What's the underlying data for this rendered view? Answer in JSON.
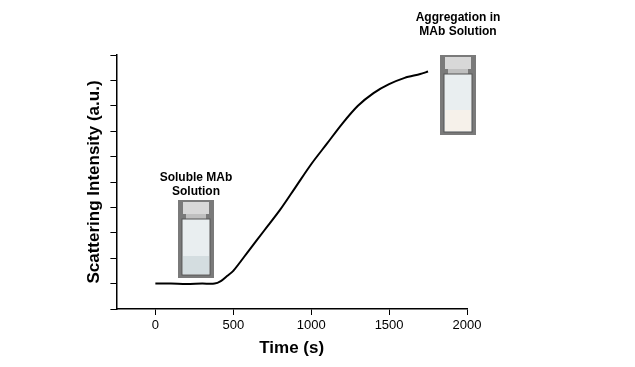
{
  "chart_data": {
    "type": "line",
    "x_label": "Time (s)",
    "y_label": "Scattering Intensity (a.u.)",
    "x": [
      0,
      100,
      200,
      300,
      380,
      420,
      460,
      500,
      600,
      700,
      800,
      900,
      1000,
      1100,
      1200,
      1300,
      1400,
      1500,
      1600,
      1700,
      1750
    ],
    "values": [
      1.0,
      1.0,
      0.98,
      1.0,
      1.0,
      1.1,
      1.3,
      1.5,
      2.3,
      3.1,
      3.9,
      4.8,
      5.7,
      6.5,
      7.3,
      8.0,
      8.5,
      8.85,
      9.1,
      9.25,
      9.35
    ],
    "color": "#000000",
    "xlim": [
      -250,
      2000
    ],
    "xticks": [
      0,
      500,
      1000,
      1500,
      2000
    ],
    "ylim": [
      0,
      10
    ],
    "yticks": [
      0,
      1,
      2,
      3,
      4,
      5,
      6,
      7,
      8,
      9,
      10
    ],
    "grid": false,
    "tick_labels": "x",
    "annotations": [
      {
        "lines": [
          "Soluble MAb",
          "Solution"
        ]
      },
      {
        "lines": [
          "Aggregation in",
          "MAb Solution"
        ]
      }
    ]
  }
}
